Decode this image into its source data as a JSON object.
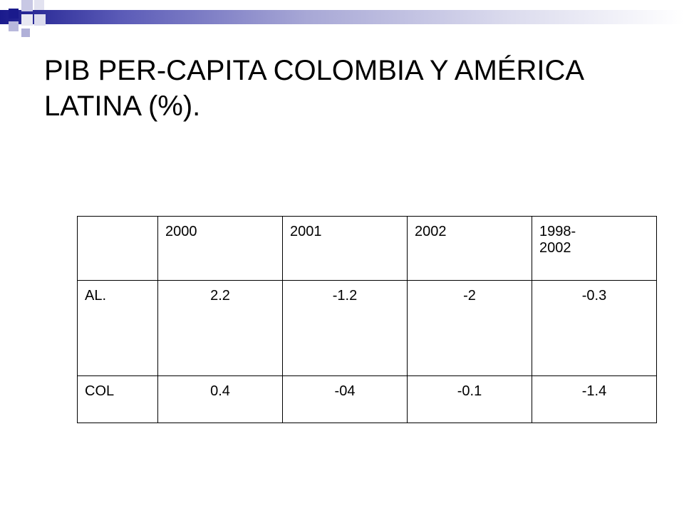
{
  "slide": {
    "title": "PIB PER-CAPITA COLOMBIA Y AMÉRICA LATINA (%)."
  },
  "table": {
    "headers": [
      "",
      "2000",
      "2001",
      "2002",
      "1998-\n2002"
    ],
    "rows": [
      {
        "label": "AL.",
        "values": [
          "2.2",
          "-1.2",
          "-2",
          "-0.3"
        ]
      },
      {
        "label": "COL",
        "values": [
          "0.4",
          "-04",
          "-0.1",
          "-1.4"
        ]
      }
    ]
  },
  "colors": {
    "accent": "#1a1a8c"
  }
}
